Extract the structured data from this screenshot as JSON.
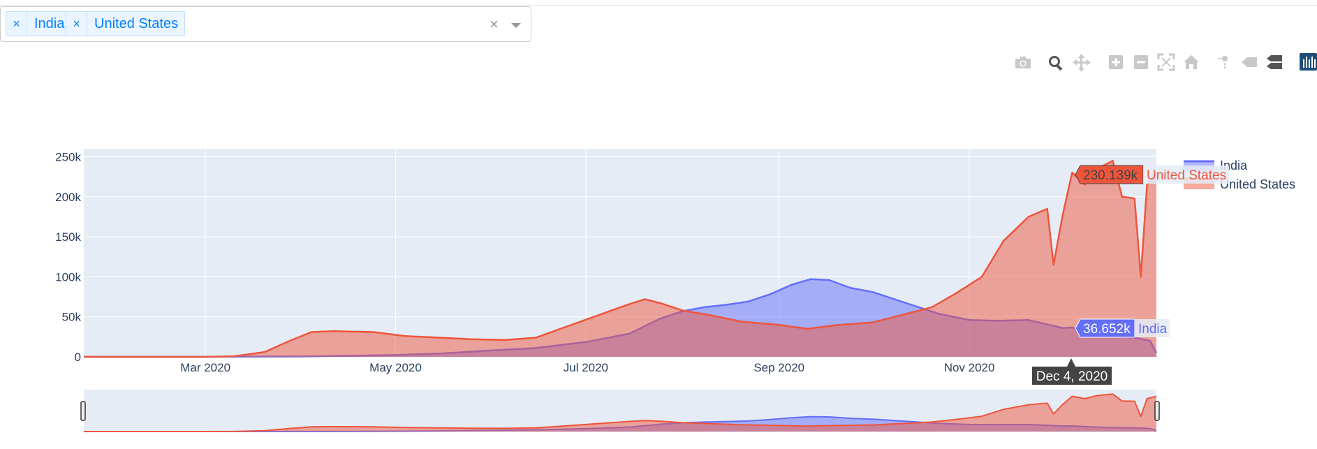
{
  "filter": {
    "selected": [
      {
        "label": "India",
        "remove": "×"
      },
      {
        "label": "United States",
        "remove": "×"
      }
    ],
    "clear": "×"
  },
  "modebar": {
    "icons": [
      "camera-icon",
      "zoom-icon",
      "pan-icon",
      "zoom-in-icon",
      "zoom-out-icon",
      "autoscale-icon",
      "reset-axes-icon",
      "spike-lines-icon",
      "hover-closest-icon",
      "hover-compare-icon",
      "plotly-logo-icon"
    ]
  },
  "colors": {
    "india": "#636efa",
    "united_states": "#ef553b",
    "plot_bg": "#e5ecf6",
    "hover_date_bg": "#444444"
  },
  "hover": {
    "date": "Dec 4, 2020",
    "united_states_value": "230.139k",
    "united_states_name": "United States",
    "india_value": "36.652k",
    "india_name": "India"
  },
  "chart_data": {
    "type": "area",
    "x_axis": "date",
    "x_range": [
      "2020-01-22",
      "2020-12-31"
    ],
    "x_ticks": [
      "Mar 2020",
      "May 2020",
      "Jul 2020",
      "Sep 2020",
      "Nov 2020"
    ],
    "y_ticks": [
      "0",
      "50k",
      "100k",
      "150k",
      "200k",
      "250k"
    ],
    "ylim": [
      0,
      260000
    ],
    "legend_position": "top-right",
    "range_slider": true,
    "series": [
      {
        "name": "India",
        "key": "india",
        "points": [
          [
            "2020-01-22",
            0
          ],
          [
            "2020-03-01",
            0
          ],
          [
            "2020-04-01",
            400
          ],
          [
            "2020-04-20",
            1500
          ],
          [
            "2020-05-01",
            2300
          ],
          [
            "2020-05-15",
            4000
          ],
          [
            "2020-06-01",
            8000
          ],
          [
            "2020-06-15",
            11000
          ],
          [
            "2020-07-01",
            18500
          ],
          [
            "2020-07-15",
            29000
          ],
          [
            "2020-07-25",
            48000
          ],
          [
            "2020-08-01",
            57000
          ],
          [
            "2020-08-08",
            62000
          ],
          [
            "2020-08-15",
            65000
          ],
          [
            "2020-08-22",
            69000
          ],
          [
            "2020-08-29",
            78000
          ],
          [
            "2020-09-05",
            90000
          ],
          [
            "2020-09-11",
            97000
          ],
          [
            "2020-09-17",
            96000
          ],
          [
            "2020-09-24",
            86000
          ],
          [
            "2020-10-01",
            81000
          ],
          [
            "2020-10-08",
            72000
          ],
          [
            "2020-10-15",
            63000
          ],
          [
            "2020-10-22",
            54000
          ],
          [
            "2020-11-01",
            46000
          ],
          [
            "2020-11-10",
            45000
          ],
          [
            "2020-11-20",
            46000
          ],
          [
            "2020-12-01",
            36000
          ],
          [
            "2020-12-04",
            36652
          ],
          [
            "2020-12-15",
            26000
          ],
          [
            "2020-12-24",
            24000
          ],
          [
            "2020-12-29",
            20000
          ],
          [
            "2020-12-31",
            5000
          ]
        ]
      },
      {
        "name": "United States",
        "key": "united_states",
        "points": [
          [
            "2020-01-22",
            0
          ],
          [
            "2020-03-01",
            0
          ],
          [
            "2020-03-10",
            600
          ],
          [
            "2020-03-20",
            6000
          ],
          [
            "2020-03-28",
            20000
          ],
          [
            "2020-04-04",
            31000
          ],
          [
            "2020-04-11",
            32000
          ],
          [
            "2020-04-24",
            31000
          ],
          [
            "2020-05-04",
            26000
          ],
          [
            "2020-05-15",
            24000
          ],
          [
            "2020-05-25",
            22000
          ],
          [
            "2020-06-05",
            21000
          ],
          [
            "2020-06-15",
            24000
          ],
          [
            "2020-06-25",
            38000
          ],
          [
            "2020-07-05",
            52000
          ],
          [
            "2020-07-15",
            66000
          ],
          [
            "2020-07-20",
            72000
          ],
          [
            "2020-07-25",
            67000
          ],
          [
            "2020-08-01",
            58000
          ],
          [
            "2020-08-10",
            52000
          ],
          [
            "2020-08-20",
            44000
          ],
          [
            "2020-09-01",
            40000
          ],
          [
            "2020-09-10",
            35000
          ],
          [
            "2020-09-20",
            40000
          ],
          [
            "2020-10-01",
            43000
          ],
          [
            "2020-10-10",
            52000
          ],
          [
            "2020-10-20",
            62000
          ],
          [
            "2020-10-28",
            80000
          ],
          [
            "2020-11-05",
            100000
          ],
          [
            "2020-11-12",
            145000
          ],
          [
            "2020-11-20",
            175000
          ],
          [
            "2020-11-26",
            185000
          ],
          [
            "2020-11-28",
            115000
          ],
          [
            "2020-12-01",
            178000
          ],
          [
            "2020-12-04",
            230139
          ],
          [
            "2020-12-08",
            215000
          ],
          [
            "2020-12-12",
            235000
          ],
          [
            "2020-12-17",
            245000
          ],
          [
            "2020-12-20",
            200000
          ],
          [
            "2020-12-24",
            198000
          ],
          [
            "2020-12-26",
            100000
          ],
          [
            "2020-12-28",
            215000
          ],
          [
            "2020-12-31",
            230000
          ]
        ]
      }
    ]
  }
}
